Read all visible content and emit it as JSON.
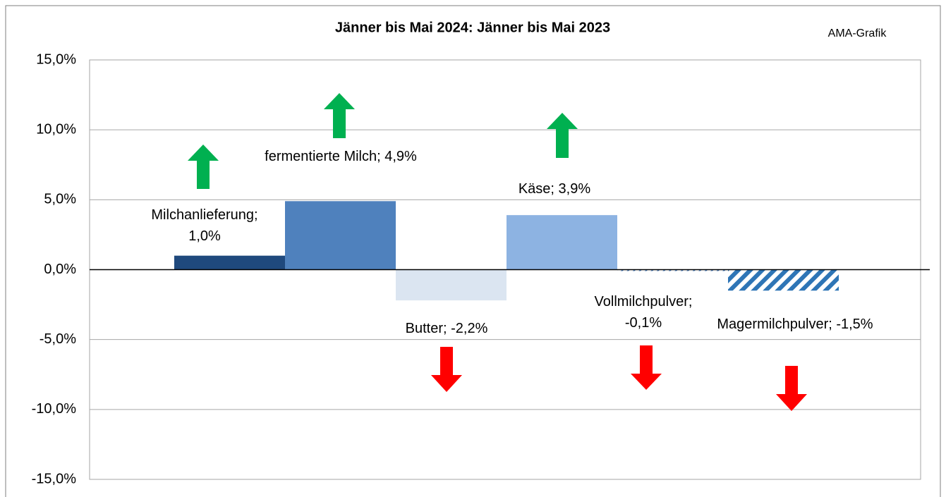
{
  "chart_data": {
    "type": "bar",
    "title": "Jänner bis Mai 2024: Jänner bis Mai 2023",
    "subtitle": "AMA-Grafik",
    "categories": [
      "Milchanlieferung",
      "fermentierte Milch",
      "Butter",
      "Käse",
      "Vollmilchpulver",
      "Magermilchpulver"
    ],
    "values": [
      1.0,
      4.9,
      -2.2,
      3.9,
      -0.1,
      -1.5
    ],
    "value_labels": [
      "Milchanlieferung; 1,0%",
      "fermentierte Milch; 4,9%",
      "Butter; -2,2%",
      "Käse; 3,9%",
      "Vollmilchpulver; -0,1%",
      "Magermilchpulver; -1,5%"
    ],
    "colors": [
      "#1f497d",
      "#4f81bd",
      "#dbe5f1",
      "#8db3e2",
      "#4f81bd",
      "#2e75b6"
    ],
    "hatch": [
      false,
      false,
      false,
      false,
      true,
      true
    ],
    "ylim": [
      -15,
      15
    ],
    "yticks": [
      {
        "value": -15,
        "label": "-15,0%"
      },
      {
        "value": -10,
        "label": "-10,0%"
      },
      {
        "value": -5,
        "label": "-5,0%"
      },
      {
        "value": 0,
        "label": "0,0%"
      },
      {
        "value": 5,
        "label": "5,0%"
      },
      {
        "value": 10,
        "label": "10,0%"
      },
      {
        "value": 15,
        "label": "15,0%"
      }
    ],
    "grid": true
  }
}
